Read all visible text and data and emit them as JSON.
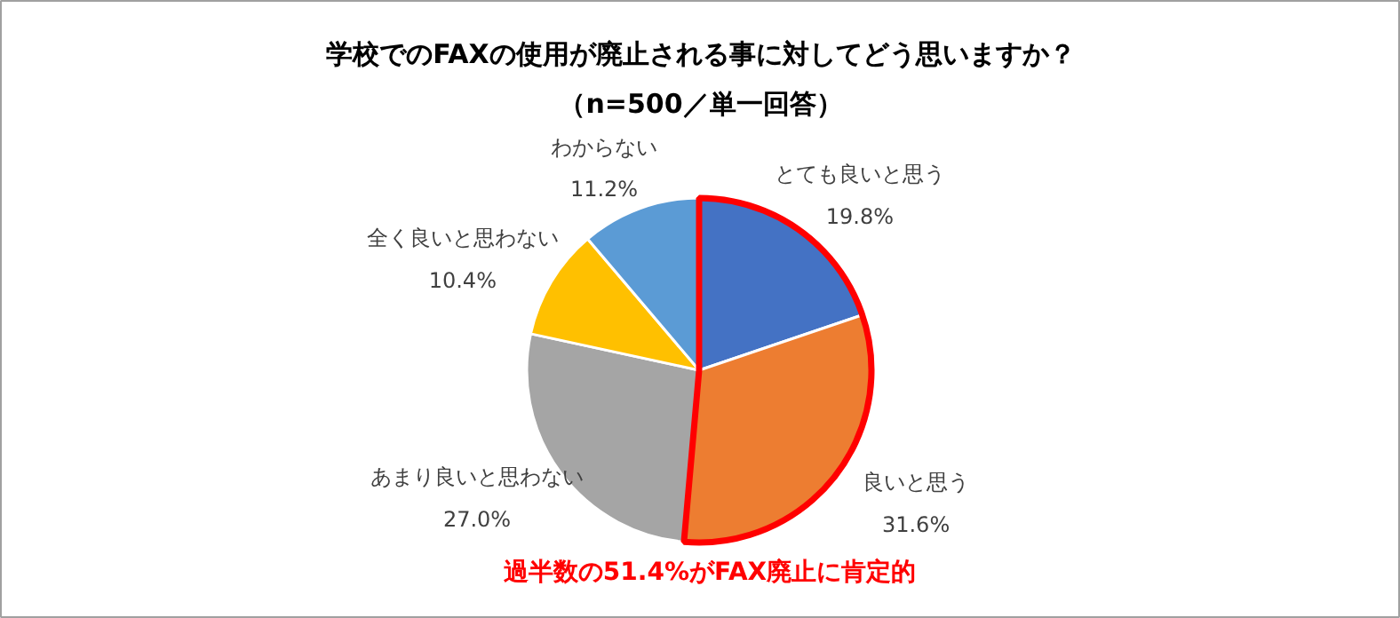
{
  "chart_data": {
    "type": "pie",
    "title": "学校でのFAXの使用が廃止される事に対してどう思いますか？",
    "subtitle": "（n=500／単一回答）",
    "categories": [
      "とても良いと思う",
      "良いと思う",
      "あまり良いと思わない",
      "全く良いと思わない",
      "わからない"
    ],
    "values": [
      19.8,
      31.6,
      27.0,
      10.4,
      11.2
    ],
    "value_labels": [
      "19.8%",
      "31.6%",
      "27.0%",
      "10.4%",
      "11.2%"
    ],
    "colors": [
      "#4472c4",
      "#ed7d31",
      "#a5a5a5",
      "#ffc000",
      "#5b9bd5"
    ],
    "annotations": [
      "過半数の51.4%がFAX廃止に肯定的"
    ]
  }
}
